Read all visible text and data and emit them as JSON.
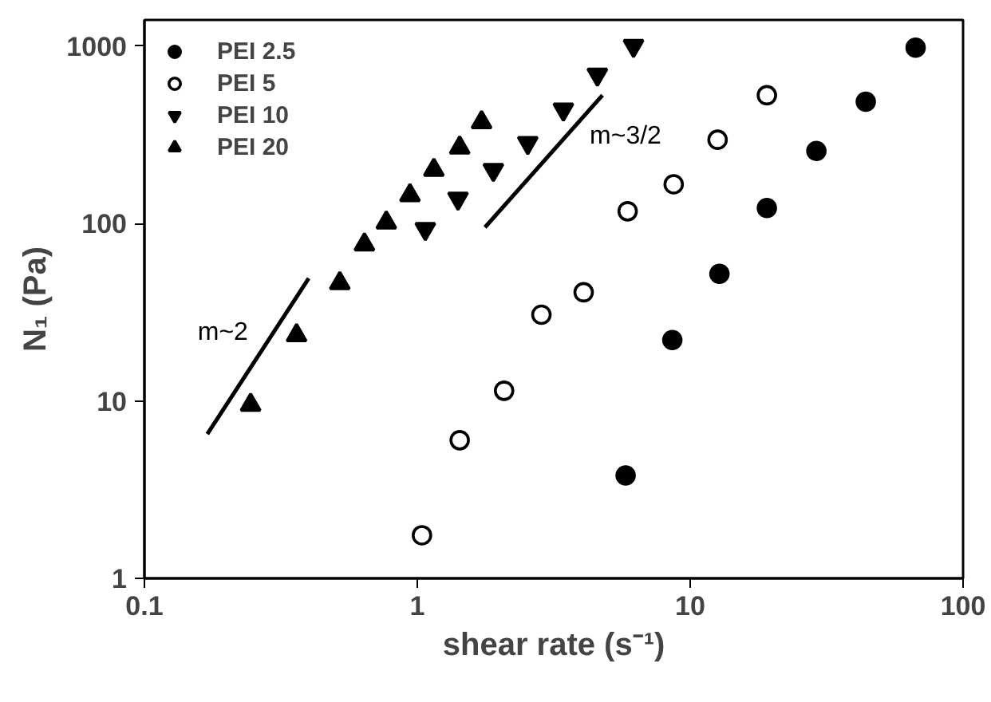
{
  "chart_data": {
    "type": "scatter",
    "xlabel": "shear rate (s⁻¹)",
    "ylabel": "N₁ (Pa)",
    "log": "xy",
    "xlim": [
      0.1,
      100
    ],
    "ylim": [
      1,
      1400
    ],
    "xticks": [
      0.1,
      1,
      10,
      100
    ],
    "yticks": [
      1,
      10,
      100,
      1000
    ],
    "grid": false,
    "legend": "top left",
    "series": [
      {
        "name": "PEI 2.5",
        "color": "#000000",
        "x": [
          5.8,
          8.6,
          12.8,
          19.1,
          29,
          44,
          67
        ],
        "values": [
          3.8,
          22,
          52,
          122,
          256,
          485,
          977
        ]
      },
      {
        "name": "PEI 5",
        "color": "#000000",
        "x": [
          1.04,
          1.43,
          2.08,
          2.85,
          4.07,
          5.9,
          8.7,
          12.6,
          19.1
        ],
        "values": [
          1.75,
          6.0,
          11.4,
          30.6,
          40.9,
          117,
          166,
          296,
          527
        ]
      },
      {
        "name": "PEI 10",
        "color": "#000000",
        "x": [
          1.07,
          1.41,
          1.9,
          2.54,
          3.43,
          4.57,
          6.2
        ],
        "values": [
          93,
          138,
          200,
          284,
          438,
          689,
          1000
        ]
      },
      {
        "name": "PEI 20",
        "color": "#000000",
        "x": [
          0.245,
          0.361,
          0.52,
          0.64,
          0.77,
          0.94,
          1.15,
          1.43,
          1.72
        ],
        "values": [
          9.5,
          23.4,
          46,
          76,
          101,
          144,
          200,
          267,
          371
        ]
      },
      {
        "type": "line",
        "color": "#000000",
        "x": [
          0.17,
          0.4
        ],
        "values": [
          6.5,
          49
        ]
      },
      {
        "type": "line",
        "color": "#000000",
        "x": [
          1.77,
          4.77
        ],
        "values": [
          95,
          527
        ]
      }
    ],
    "annotations": [
      "m~2",
      "m~3/2"
    ]
  }
}
